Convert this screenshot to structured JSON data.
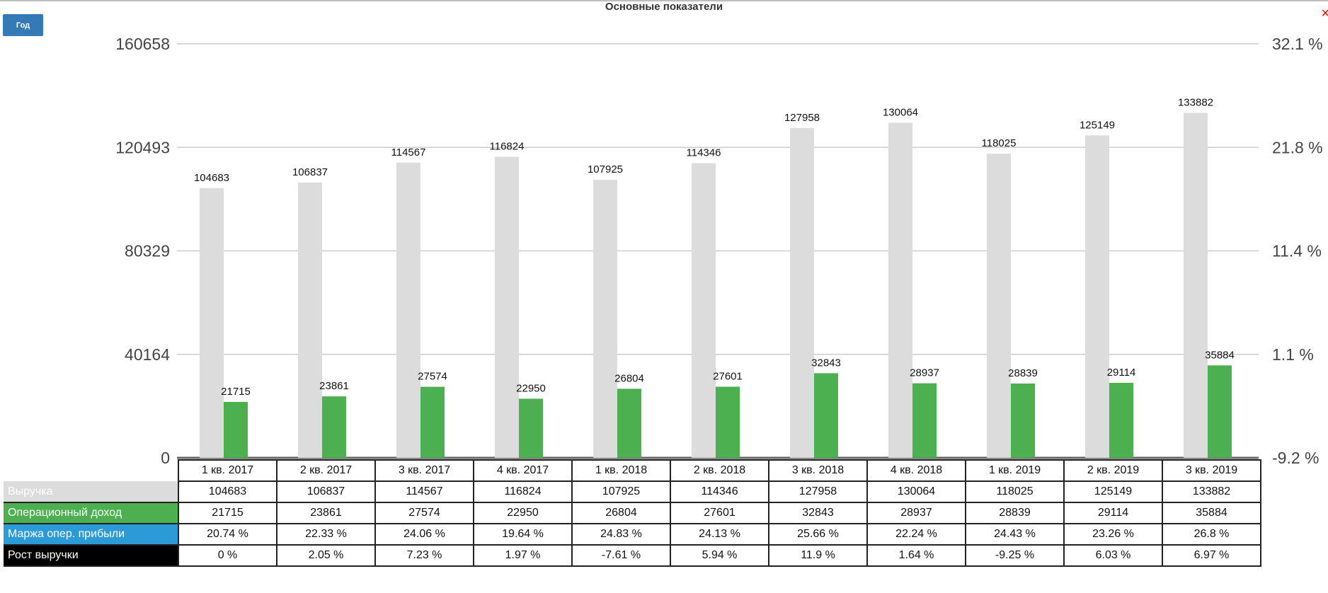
{
  "title": "Основные показатели",
  "year_button": "Год",
  "close_icon": "×",
  "colors": {
    "revenue": "#dcdcdc",
    "op_income": "#4caf50",
    "margin": "#2b9ad6",
    "growth": "#000000"
  },
  "chart_data": {
    "type": "bar",
    "title": "Основные показатели",
    "categories": [
      "1 кв. 2017",
      "2 кв. 2017",
      "3 кв. 2017",
      "4 кв. 2017",
      "1 кв. 2018",
      "2 кв. 2018",
      "3 кв. 2018",
      "4 кв. 2018",
      "1 кв. 2019",
      "2 кв. 2019",
      "3 кв. 2019"
    ],
    "left_ticks": [
      "160658",
      "120493",
      "80329",
      "40164",
      "0"
    ],
    "right_ticks": [
      "32.1 %",
      "21.8 %",
      "11.4 %",
      "1.1 %",
      "-9.2 %"
    ],
    "ylim": [
      0,
      160658
    ],
    "y2lim": [
      -9.2,
      32.1
    ],
    "series": [
      {
        "name": "Выручка",
        "values": [
          104683,
          106837,
          114567,
          116824,
          107925,
          114346,
          127958,
          130064,
          118025,
          125149,
          133882
        ]
      },
      {
        "name": "Операционный доход",
        "values": [
          21715,
          23861,
          27574,
          22950,
          26804,
          27601,
          32843,
          28937,
          28839,
          29114,
          35884
        ]
      }
    ]
  },
  "table": {
    "rows": [
      {
        "label": "Выручка",
        "cells": [
          "104683",
          "106837",
          "114567",
          "116824",
          "107925",
          "114346",
          "127958",
          "130064",
          "118025",
          "125149",
          "133882"
        ]
      },
      {
        "label": "Операционный доход",
        "cells": [
          "21715",
          "23861",
          "27574",
          "22950",
          "26804",
          "27601",
          "32843",
          "28937",
          "28839",
          "29114",
          "35884"
        ]
      },
      {
        "label": "Маржа опер. прибыли",
        "cells": [
          "20.74 %",
          "22.33 %",
          "24.06 %",
          "19.64 %",
          "24.83 %",
          "24.13 %",
          "25.66 %",
          "22.24 %",
          "24.43 %",
          "23.26 %",
          "26.8 %"
        ]
      },
      {
        "label": "Рост выручки",
        "cells": [
          "0 %",
          "2.05 %",
          "7.23 %",
          "1.97 %",
          "-7.61 %",
          "5.94 %",
          "11.9 %",
          "1.64 %",
          "-9.25 %",
          "6.03 %",
          "6.97 %"
        ]
      }
    ]
  }
}
